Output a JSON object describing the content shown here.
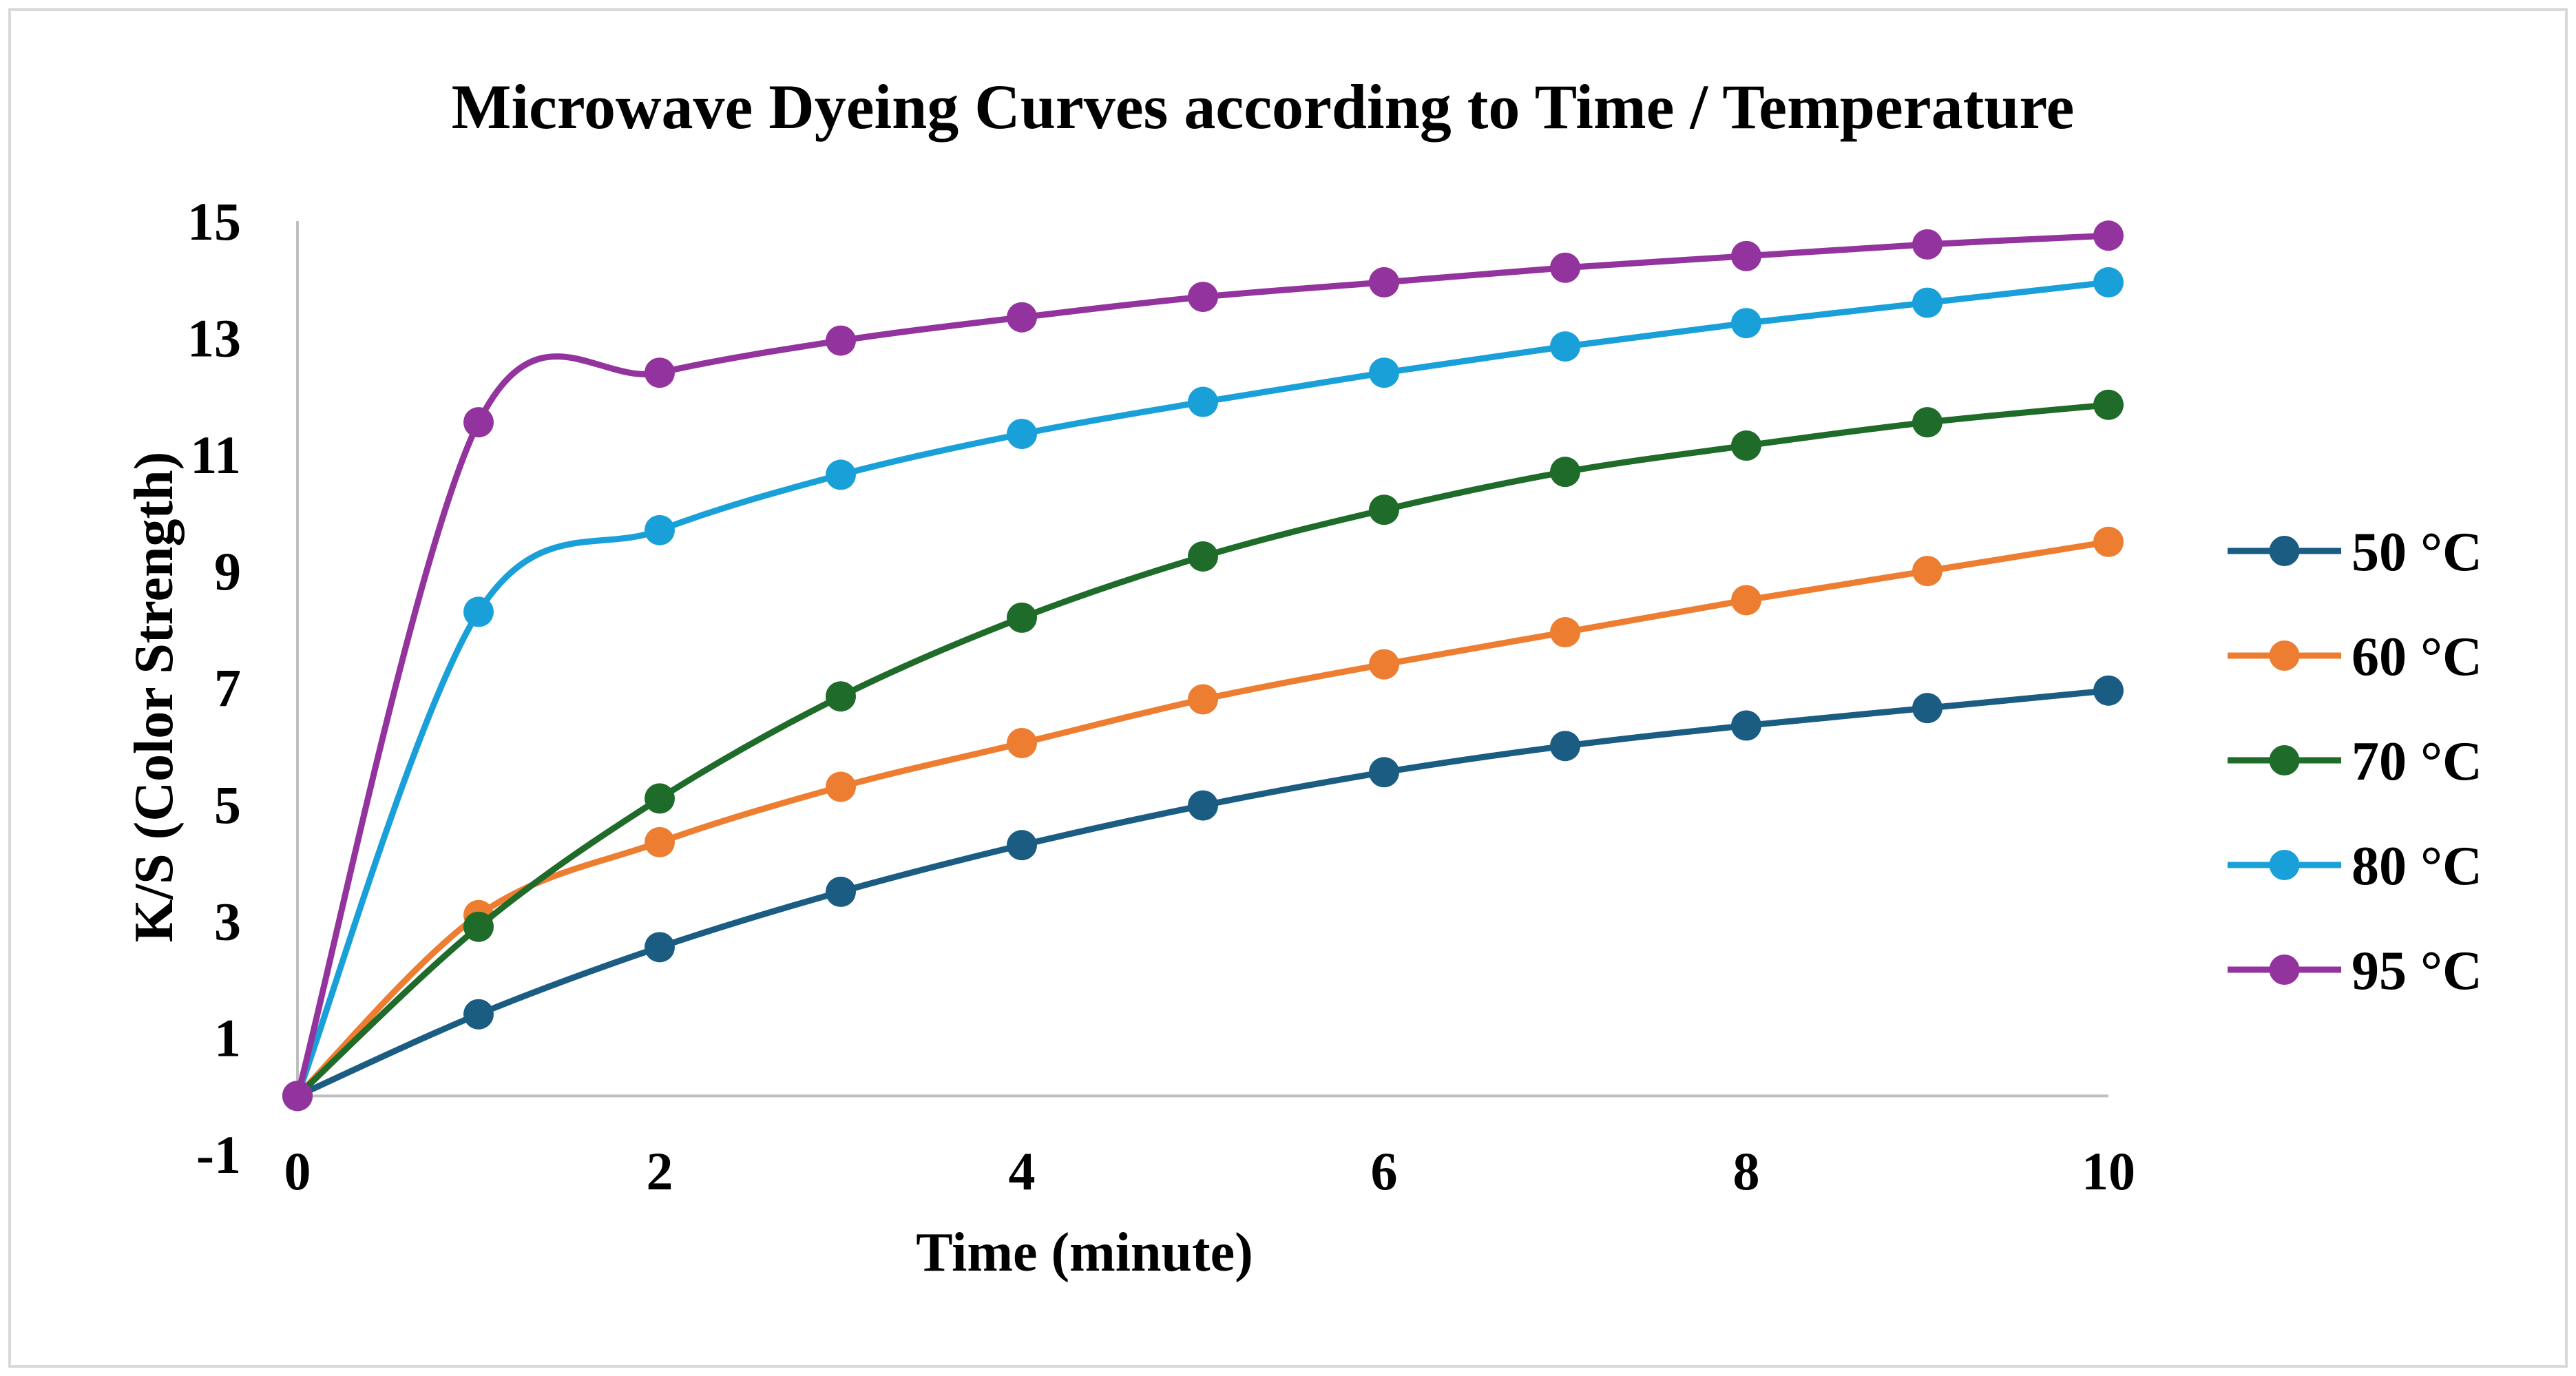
{
  "chart_data": {
    "type": "line",
    "title": "Microwave Dyeing Curves according to Time / Temperature",
    "xlabel": "Time (minute)",
    "ylabel": "K/S (Color Strength)",
    "xlim": [
      0,
      10
    ],
    "ylim": [
      -1,
      15
    ],
    "x_ticks": [
      0,
      2,
      4,
      6,
      8,
      10
    ],
    "y_ticks": [
      -1,
      1,
      3,
      5,
      7,
      9,
      11,
      13,
      15
    ],
    "grid": false,
    "legend_position": "right",
    "x": [
      0,
      1,
      2,
      3,
      4,
      5,
      6,
      7,
      8,
      9,
      10
    ],
    "series": [
      {
        "name": "50 °C",
        "color": "#1b5c82",
        "values": [
          0,
          1.4,
          2.55,
          3.5,
          4.3,
          4.98,
          5.55,
          6.0,
          6.35,
          6.65,
          6.95
        ]
      },
      {
        "name": "60 °C",
        "color": "#ed7d31",
        "values": [
          0,
          3.1,
          4.35,
          5.3,
          6.05,
          6.8,
          7.4,
          7.95,
          8.5,
          9.0,
          9.5
        ]
      },
      {
        "name": "70 °C",
        "color": "#1e6b2a",
        "values": [
          0,
          2.9,
          5.1,
          6.85,
          8.2,
          9.25,
          10.05,
          10.7,
          11.15,
          11.55,
          11.85
        ]
      },
      {
        "name": "80 °C",
        "color": "#1aa0d8",
        "values": [
          0,
          8.3,
          9.7,
          10.65,
          11.35,
          11.9,
          12.4,
          12.85,
          13.25,
          13.6,
          13.95
        ]
      },
      {
        "name": "95 °C",
        "color": "#93339e",
        "values": [
          0,
          11.55,
          12.4,
          12.95,
          13.35,
          13.7,
          13.95,
          14.2,
          14.4,
          14.6,
          14.75
        ]
      }
    ]
  }
}
